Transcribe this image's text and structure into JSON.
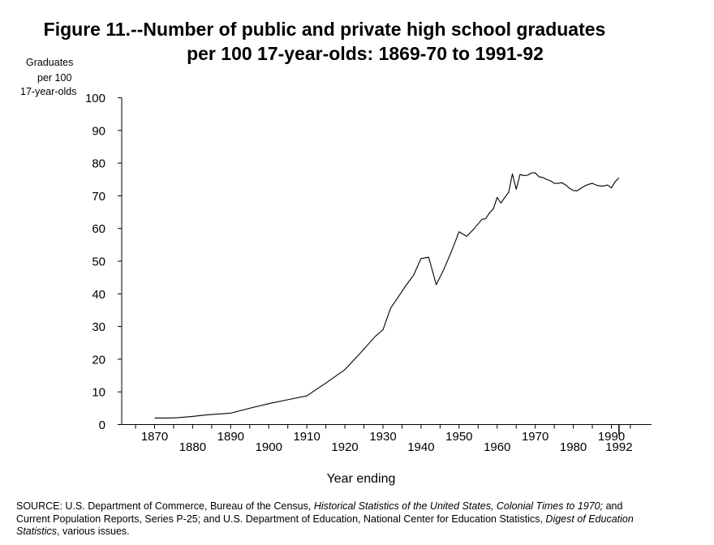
{
  "chart_data": {
    "type": "line",
    "title": "Figure 11.--Number of public and private high school graduates per 100 17-year-olds:  1869-70 to 1991-92",
    "title_lines": [
      "Figure 11.--Number of public and private high school graduates",
      "per 100 17-year-olds:  1869-70 to 1991-92"
    ],
    "ylabel_lines": [
      "Graduates",
      "per 100",
      "17-year-olds"
    ],
    "xlabel": "Year ending",
    "ylim": [
      0,
      100
    ],
    "xlim": [
      1870,
      1992
    ],
    "y_ticks": [
      "0",
      "10",
      "20",
      "30",
      "40",
      "50",
      "60",
      "70",
      "80",
      "90",
      "100"
    ],
    "x_ticks_top": [
      "1870",
      "1890",
      "1910",
      "1930",
      "1950",
      "1970",
      "1990"
    ],
    "x_ticks_bottom": [
      "1880",
      "1900",
      "1920",
      "1940",
      "1960",
      "1980",
      "1992"
    ],
    "grid": false,
    "series": [
      {
        "color": "#000000",
        "points": [
          [
            1870,
            2.0
          ],
          [
            1874,
            2.0
          ],
          [
            1876,
            2.1
          ],
          [
            1880,
            2.5
          ],
          [
            1884,
            3.0
          ],
          [
            1890,
            3.5
          ],
          [
            1895,
            5.0
          ],
          [
            1900,
            6.4
          ],
          [
            1905,
            7.6
          ],
          [
            1910,
            8.8
          ],
          [
            1915,
            12.7
          ],
          [
            1920,
            16.8
          ],
          [
            1924,
            21.8
          ],
          [
            1928,
            27.0
          ],
          [
            1930,
            29.0
          ],
          [
            1932,
            35.6
          ],
          [
            1934,
            39.0
          ],
          [
            1936,
            42.5
          ],
          [
            1938,
            45.6
          ],
          [
            1940,
            50.8
          ],
          [
            1942,
            51.2
          ],
          [
            1944,
            42.8
          ],
          [
            1946,
            47.5
          ],
          [
            1948,
            53.0
          ],
          [
            1950,
            59.0
          ],
          [
            1952,
            57.6
          ],
          [
            1954,
            60.0
          ],
          [
            1956,
            62.8
          ],
          [
            1957,
            63.0
          ],
          [
            1958,
            64.8
          ],
          [
            1959,
            66.0
          ],
          [
            1960,
            69.5
          ],
          [
            1961,
            67.8
          ],
          [
            1962,
            69.5
          ],
          [
            1963,
            71.0
          ],
          [
            1964,
            76.7
          ],
          [
            1965,
            72.0
          ],
          [
            1966,
            76.5
          ],
          [
            1967,
            76.2
          ],
          [
            1968,
            76.3
          ],
          [
            1969,
            77.0
          ],
          [
            1970,
            77.0
          ],
          [
            1971,
            75.8
          ],
          [
            1972,
            75.6
          ],
          [
            1973,
            75.0
          ],
          [
            1974,
            74.6
          ],
          [
            1975,
            73.8
          ],
          [
            1976,
            73.8
          ],
          [
            1977,
            74.0
          ],
          [
            1978,
            73.3
          ],
          [
            1979,
            72.3
          ],
          [
            1980,
            71.6
          ],
          [
            1981,
            71.5
          ],
          [
            1982,
            72.3
          ],
          [
            1983,
            73.0
          ],
          [
            1984,
            73.5
          ],
          [
            1985,
            73.8
          ],
          [
            1986,
            73.3
          ],
          [
            1987,
            73.0
          ],
          [
            1988,
            73.0
          ],
          [
            1989,
            73.3
          ],
          [
            1990,
            72.4
          ],
          [
            1991,
            74.3
          ],
          [
            1992,
            75.5
          ]
        ]
      }
    ]
  },
  "source": {
    "lines": [
      [
        {
          "text": "SOURCE:  U.S. Department of Commerce, Bureau of the Census, ",
          "italic": false
        },
        {
          "text": "Historical Statistics of the United States, Colonial Times to 1970;",
          "italic": true
        },
        {
          "text": "  and",
          "italic": false
        }
      ],
      [
        {
          "text": "Current Population Reports, Series P-25; and U.S. Department of Education, National Center for Education Statistics,  ",
          "italic": false
        },
        {
          "text": "Digest of Education",
          "italic": true
        }
      ],
      [
        {
          "text": "Statistics",
          "italic": true
        },
        {
          "text": ", various issues.",
          "italic": false
        }
      ]
    ]
  }
}
